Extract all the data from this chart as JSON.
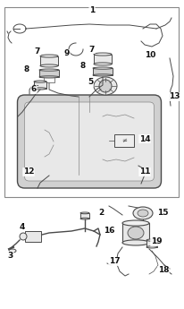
{
  "background_color": "#ffffff",
  "fig_width": 2.07,
  "fig_height": 3.45,
  "dpi": 100,
  "line_color": "#4a4a4a",
  "light_line": "#888888",
  "fill_light": "#e8e8e8",
  "fill_mid": "#d0d0d0",
  "fill_dark": "#b8b8b8",
  "label_fontsize": 6.5,
  "accent_color": "#111111",
  "border_lw": 0.8
}
